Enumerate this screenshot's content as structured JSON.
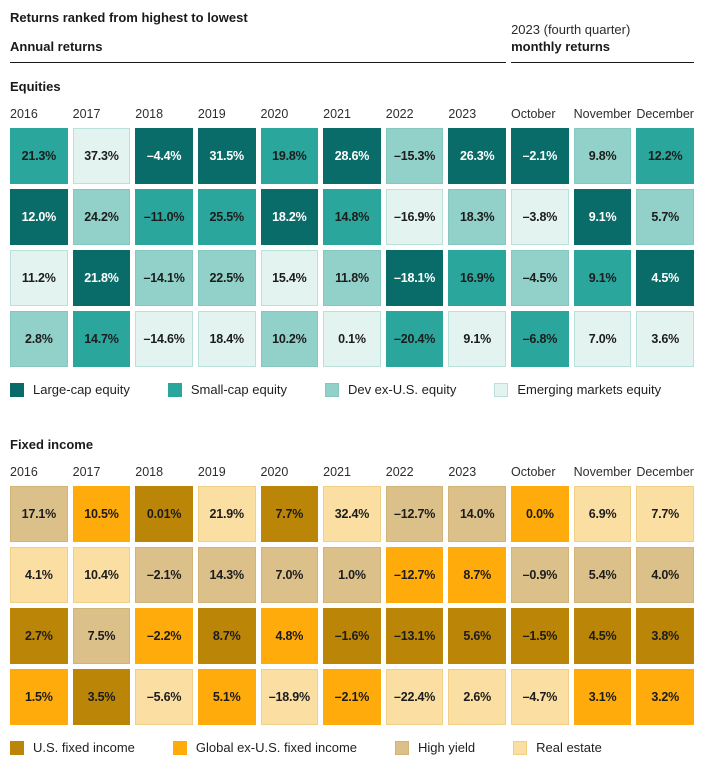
{
  "header": {
    "title": "Returns ranked from highest to lowest",
    "annual_label": "Annual returns",
    "quarter_label": "2023 (fourth quarter)",
    "monthly_label": "monthly returns"
  },
  "chart_data": [
    {
      "type": "heatmap",
      "section": "Equities",
      "columns": [
        "2016",
        "2017",
        "2018",
        "2019",
        "2020",
        "2021",
        "2022",
        "2023",
        "October",
        "November",
        "December"
      ],
      "classes": {
        "large": {
          "label": "Large-cap equity",
          "color": "#0a6c68",
          "text": "#ffffff",
          "border": "#0a6c68"
        },
        "small": {
          "label": "Small-cap equity",
          "color": "#2aa69d",
          "text": "#1c1c1c",
          "border": "#2aa69d"
        },
        "dev": {
          "label": "Dev ex-U.S. equity",
          "color": "#91d1c9",
          "text": "#1c1c1c",
          "border": "#84c8c0"
        },
        "em": {
          "label": "Emerging markets equity",
          "color": "#e3f4f0",
          "text": "#1c1c1c",
          "border": "#b9e0da"
        }
      },
      "legend_order": [
        "large",
        "small",
        "dev",
        "em"
      ],
      "rows": [
        [
          [
            "21.3%",
            "small"
          ],
          [
            "37.3%",
            "em"
          ],
          [
            "–4.4%",
            "large"
          ],
          [
            "31.5%",
            "large"
          ],
          [
            "19.8%",
            "small"
          ],
          [
            "28.6%",
            "large"
          ],
          [
            "–15.3%",
            "dev"
          ],
          [
            "26.3%",
            "large"
          ],
          [
            "–2.1%",
            "large"
          ],
          [
            "9.8%",
            "dev"
          ],
          [
            "12.2%",
            "small"
          ]
        ],
        [
          [
            "12.0%",
            "large"
          ],
          [
            "24.2%",
            "dev"
          ],
          [
            "–11.0%",
            "small"
          ],
          [
            "25.5%",
            "small"
          ],
          [
            "18.2%",
            "large"
          ],
          [
            "14.8%",
            "small"
          ],
          [
            "–16.9%",
            "em"
          ],
          [
            "18.3%",
            "dev"
          ],
          [
            "–3.8%",
            "em"
          ],
          [
            "9.1%",
            "large"
          ],
          [
            "5.7%",
            "dev"
          ]
        ],
        [
          [
            "11.2%",
            "em"
          ],
          [
            "21.8%",
            "large"
          ],
          [
            "–14.1%",
            "dev"
          ],
          [
            "22.5%",
            "dev"
          ],
          [
            "15.4%",
            "em"
          ],
          [
            "11.8%",
            "dev"
          ],
          [
            "–18.1%",
            "large"
          ],
          [
            "16.9%",
            "small"
          ],
          [
            "–4.5%",
            "dev"
          ],
          [
            "9.1%",
            "small"
          ],
          [
            "4.5%",
            "large"
          ]
        ],
        [
          [
            "2.8%",
            "dev"
          ],
          [
            "14.7%",
            "small"
          ],
          [
            "–14.6%",
            "em"
          ],
          [
            "18.4%",
            "em"
          ],
          [
            "10.2%",
            "dev"
          ],
          [
            "0.1%",
            "em"
          ],
          [
            "–20.4%",
            "small"
          ],
          [
            "9.1%",
            "em"
          ],
          [
            "–6.8%",
            "small"
          ],
          [
            "7.0%",
            "em"
          ],
          [
            "3.6%",
            "em"
          ]
        ]
      ]
    },
    {
      "type": "heatmap",
      "section": "Fixed income",
      "columns": [
        "2016",
        "2017",
        "2018",
        "2019",
        "2020",
        "2021",
        "2022",
        "2023",
        "October",
        "November",
        "December"
      ],
      "classes": {
        "us": {
          "label": "U.S. fixed income",
          "color": "#bb8607",
          "text": "#1c1c1c",
          "border": "#bb8607"
        },
        "global": {
          "label": "Global ex-U.S. fixed income",
          "color": "#feab0b",
          "text": "#1c1c1c",
          "border": "#feab0b"
        },
        "hy": {
          "label": "High yield",
          "color": "#dcc08a",
          "text": "#1c1c1c",
          "border": "#d2b478"
        },
        "re": {
          "label": "Real estate",
          "color": "#fbdfa2",
          "text": "#1c1c1c",
          "border": "#f1cf86"
        }
      },
      "legend_order": [
        "us",
        "global",
        "hy",
        "re"
      ],
      "rows": [
        [
          [
            "17.1%",
            "hy"
          ],
          [
            "10.5%",
            "global"
          ],
          [
            "0.01%",
            "us"
          ],
          [
            "21.9%",
            "re"
          ],
          [
            "7.7%",
            "us"
          ],
          [
            "32.4%",
            "re"
          ],
          [
            "–12.7%",
            "hy"
          ],
          [
            "14.0%",
            "hy"
          ],
          [
            "0.0%",
            "global"
          ],
          [
            "6.9%",
            "re"
          ],
          [
            "7.7%",
            "re"
          ]
        ],
        [
          [
            "4.1%",
            "re"
          ],
          [
            "10.4%",
            "re"
          ],
          [
            "–2.1%",
            "hy"
          ],
          [
            "14.3%",
            "hy"
          ],
          [
            "7.0%",
            "hy"
          ],
          [
            "1.0%",
            "hy"
          ],
          [
            "–12.7%",
            "global"
          ],
          [
            "8.7%",
            "global"
          ],
          [
            "–0.9%",
            "hy"
          ],
          [
            "5.4%",
            "hy"
          ],
          [
            "4.0%",
            "hy"
          ]
        ],
        [
          [
            "2.7%",
            "us"
          ],
          [
            "7.5%",
            "hy"
          ],
          [
            "–2.2%",
            "global"
          ],
          [
            "8.7%",
            "us"
          ],
          [
            "4.8%",
            "global"
          ],
          [
            "–1.6%",
            "us"
          ],
          [
            "–13.1%",
            "us"
          ],
          [
            "5.6%",
            "us"
          ],
          [
            "–1.5%",
            "us"
          ],
          [
            "4.5%",
            "us"
          ],
          [
            "3.8%",
            "us"
          ]
        ],
        [
          [
            "1.5%",
            "global"
          ],
          [
            "3.5%",
            "us"
          ],
          [
            "–5.6%",
            "re"
          ],
          [
            "5.1%",
            "global"
          ],
          [
            "–18.9%",
            "re"
          ],
          [
            "–2.1%",
            "global"
          ],
          [
            "–22.4%",
            "re"
          ],
          [
            "2.6%",
            "re"
          ],
          [
            "–4.7%",
            "re"
          ],
          [
            "3.1%",
            "global"
          ],
          [
            "3.2%",
            "global"
          ]
        ]
      ]
    }
  ]
}
